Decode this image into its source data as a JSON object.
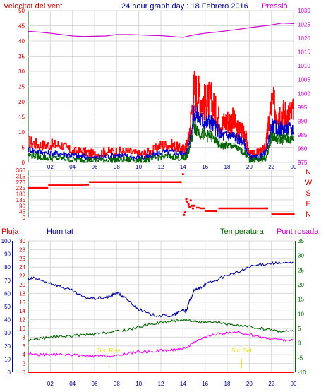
{
  "header": {
    "title": "24 hour graph day : 18 Febrero 2016",
    "wind_label": "Velocitat del vent",
    "pressure_label": "Pressió"
  },
  "colors": {
    "frame": "#0a5a0a",
    "grid": "#d8d8d8",
    "wind_gust": "#ff0000",
    "wind_avg": "#006400",
    "wind_mean": "#0000c8",
    "pressure": "#cc00cc",
    "direction": "#ff0000",
    "humidity": "#000099",
    "temperature": "#006400",
    "dewpoint": "#ff00ff",
    "rain": "#ff0000",
    "sun": "#e0e000",
    "title": "#00008b",
    "red_label": "#cc0000",
    "green_label": "#006400",
    "magenta_label": "#cc00cc",
    "blue_axis": "#000099"
  },
  "chart_data": [
    {
      "type": "line",
      "name": "wind-pressure",
      "title": "24 hour graph day : 18 Febrero 2016",
      "ylabel_left": "Velocitat del vent",
      "ylabel_right": "Pressió",
      "x_ticks": [
        "02",
        "04",
        "06",
        "08",
        "10",
        "12",
        "14",
        "16",
        "18",
        "20",
        "22",
        "00"
      ],
      "x_range": [
        0,
        24
      ],
      "y_left_range": [
        0,
        50
      ],
      "y_left_ticks": [
        0,
        5,
        10,
        15,
        20,
        25,
        30,
        35,
        40,
        45,
        50
      ],
      "y_right_range": [
        975,
        1030
      ],
      "y_right_ticks": [
        975,
        980,
        985,
        990,
        995,
        1000,
        1005,
        1010,
        1015,
        1020,
        1025,
        1030
      ],
      "series": [
        {
          "name": "Gust",
          "axis": "left",
          "color": "#ff0000",
          "x": [
            0,
            1,
            2,
            3,
            4,
            5,
            6,
            7,
            8,
            9,
            10,
            11,
            12,
            13,
            13.8,
            14.2,
            14.5,
            15,
            15.5,
            16,
            16.5,
            17,
            17.5,
            18,
            18.5,
            19,
            19.5,
            20,
            20.5,
            21,
            21.5,
            22,
            22.5,
            23,
            23.5,
            24
          ],
          "values": [
            6,
            5,
            5,
            5,
            3,
            3,
            2,
            3,
            3,
            3,
            2,
            3,
            5,
            5,
            4,
            4,
            7,
            21,
            19,
            17,
            18,
            14,
            11,
            12,
            12,
            9,
            10,
            2,
            2,
            3,
            5,
            17,
            15,
            14,
            14,
            14
          ]
        },
        {
          "name": "Mean",
          "axis": "left",
          "color": "#0000c8",
          "x": [
            0,
            1,
            2,
            3,
            4,
            5,
            6,
            7,
            8,
            9,
            10,
            11,
            12,
            13,
            13.8,
            14.2,
            14.5,
            15,
            15.5,
            16,
            16.5,
            17,
            17.5,
            18,
            18.5,
            19,
            19.5,
            20,
            20.5,
            21,
            21.5,
            22,
            22.5,
            23,
            23.5,
            24
          ],
          "values": [
            4,
            3,
            2.5,
            2.5,
            2,
            1.5,
            1,
            1.5,
            2,
            1.5,
            1,
            1.5,
            3,
            3,
            2.5,
            2,
            5,
            15,
            13,
            12,
            12,
            10,
            8,
            8,
            8,
            7,
            6,
            1.5,
            1,
            1.5,
            3,
            11,
            10,
            10,
            10,
            10
          ]
        },
        {
          "name": "Average",
          "axis": "left",
          "color": "#006400",
          "x": [
            0,
            1,
            2,
            3,
            4,
            5,
            6,
            7,
            8,
            9,
            10,
            11,
            12,
            13,
            13.8,
            14.2,
            14.5,
            15,
            15.5,
            16,
            16.5,
            17,
            17.5,
            18,
            18.5,
            19,
            19.5,
            20,
            20.5,
            21,
            21.5,
            22,
            22.5,
            23,
            23.5,
            24
          ],
          "values": [
            2,
            1.5,
            1,
            1,
            0.5,
            0.5,
            0.3,
            0.5,
            0.5,
            0.5,
            0.3,
            0.5,
            1.5,
            1.5,
            1,
            1,
            3,
            11,
            9,
            8,
            8,
            6,
            5,
            5,
            5,
            4,
            3,
            0.5,
            0.5,
            0.5,
            1,
            8,
            7,
            7,
            7,
            7
          ]
        },
        {
          "name": "Pressure",
          "axis": "right",
          "color": "#cc00cc",
          "x": [
            0,
            1,
            2,
            3,
            4,
            5,
            6,
            7,
            8,
            9,
            10,
            11,
            12,
            13,
            14,
            15,
            16,
            17,
            18,
            19,
            20,
            21,
            22,
            23,
            24
          ],
          "values": [
            1022.5,
            1022.2,
            1021.8,
            1021.3,
            1020.8,
            1020.6,
            1020.7,
            1020.8,
            1021.3,
            1021.3,
            1021.2,
            1021.0,
            1020.9,
            1020.6,
            1020.3,
            1021.2,
            1021.8,
            1022.2,
            1022.7,
            1023.2,
            1023.8,
            1024.3,
            1024.8,
            1025.5,
            1025.3
          ]
        }
      ]
    },
    {
      "type": "scatter",
      "name": "wind-direction",
      "x_range": [
        0,
        24
      ],
      "y_range": [
        0,
        360
      ],
      "y_ticks": [
        0,
        45,
        90,
        135,
        180,
        225,
        270,
        315,
        360
      ],
      "compass_labels": [
        "N",
        "W",
        "S",
        "E",
        "N"
      ],
      "series": [
        {
          "name": "Direction",
          "color": "#ff0000",
          "x": [
            0,
            1.5,
            1.8,
            5,
            5.5,
            13.8,
            14.0,
            14.1,
            14.2,
            14.3,
            14.4,
            14.5,
            14.6,
            14.7,
            14.8,
            14.9,
            15,
            15.2,
            15.5,
            16,
            17,
            17.2,
            18,
            19,
            20,
            21,
            21.6,
            22,
            24
          ],
          "values": [
            225,
            225,
            245,
            250,
            270,
            270,
            330,
            20,
            40,
            140,
            120,
            100,
            80,
            130,
            90,
            70,
            90,
            75,
            70,
            50,
            50,
            70,
            70,
            70,
            70,
            70,
            70,
            25,
            25
          ]
        }
      ]
    },
    {
      "type": "line",
      "name": "humidity-temperature",
      "x_ticks": [
        "02",
        "04",
        "06",
        "08",
        "10",
        "12",
        "14",
        "16",
        "18",
        "20",
        "22",
        "00"
      ],
      "x_range": [
        0,
        24
      ],
      "labels": {
        "rain": "Pluja",
        "humidity": "Humitat",
        "temperature": "Temperatura",
        "dewpoint": "Punt rosada"
      },
      "humidity_axis": {
        "range": [
          0,
          100
        ],
        "ticks": [
          0,
          10,
          20,
          30,
          40,
          50,
          60,
          70,
          80,
          90,
          100
        ]
      },
      "rain_axis": {
        "range": [
          0,
          30
        ],
        "ticks": [
          0,
          2,
          4,
          6,
          8,
          10,
          12,
          14,
          16,
          18,
          20,
          22,
          24,
          26,
          28,
          30
        ]
      },
      "temp_axis": {
        "range": [
          -10,
          35
        ],
        "ticks": [
          -10,
          -5,
          0,
          5,
          10,
          15,
          20,
          25,
          30,
          35
        ]
      },
      "annotations": [
        {
          "text": "Sun Rise",
          "x": 7.3
        },
        {
          "text": "Sun Set",
          "x": 19.3
        }
      ],
      "series": [
        {
          "name": "Humitat",
          "axis": "humidity",
          "color": "#000099",
          "x": [
            0,
            0.5,
            1,
            2,
            3,
            4,
            5,
            6,
            7,
            7.5,
            8,
            8.5,
            9,
            10,
            11,
            12,
            13,
            13.5,
            14,
            14.3,
            14.5,
            15,
            15.5,
            16,
            17,
            18,
            19,
            20,
            21,
            22,
            23,
            24
          ],
          "values": [
            70,
            72,
            70,
            68,
            65,
            62,
            57,
            56,
            57,
            58,
            61,
            58,
            55,
            48,
            44,
            43,
            43,
            45,
            48,
            46,
            52,
            62,
            64,
            67,
            70,
            74,
            76,
            80,
            82,
            83,
            83,
            83
          ]
        },
        {
          "name": "Temperatura",
          "axis": "temp",
          "color": "#006400",
          "x": [
            0,
            1,
            2,
            3,
            4,
            5,
            6,
            7,
            8,
            9,
            10,
            11,
            12,
            13,
            14,
            15,
            16,
            17,
            18,
            19,
            20,
            21,
            22,
            23,
            24
          ],
          "values": [
            1,
            1.5,
            2,
            2.2,
            2.5,
            2.8,
            3,
            3.5,
            4,
            4.5,
            5.5,
            6.5,
            7,
            7.5,
            8,
            7.5,
            7,
            7,
            6.5,
            6,
            5.5,
            5,
            4.5,
            4,
            4
          ]
        },
        {
          "name": "Punt rosada",
          "axis": "temp",
          "color": "#ff00ff",
          "x": [
            0,
            1,
            2,
            3,
            4,
            5,
            6,
            7,
            8,
            9,
            10,
            11,
            12,
            13,
            13.5,
            14,
            15,
            16,
            17,
            18,
            19,
            20,
            21,
            22,
            23,
            24
          ],
          "values": [
            -3.5,
            -4,
            -4,
            -4,
            -4,
            -4.5,
            -4.5,
            -4.5,
            -4.5,
            -3.5,
            -3,
            -3,
            -2.5,
            -2.5,
            -2,
            -2,
            0,
            2,
            3,
            3.5,
            3.5,
            3,
            2,
            1.5,
            1,
            1
          ]
        },
        {
          "name": "Pluja",
          "axis": "rain",
          "color": "#ff0000",
          "x": [
            0,
            24
          ],
          "values": [
            0,
            0
          ]
        }
      ]
    }
  ]
}
